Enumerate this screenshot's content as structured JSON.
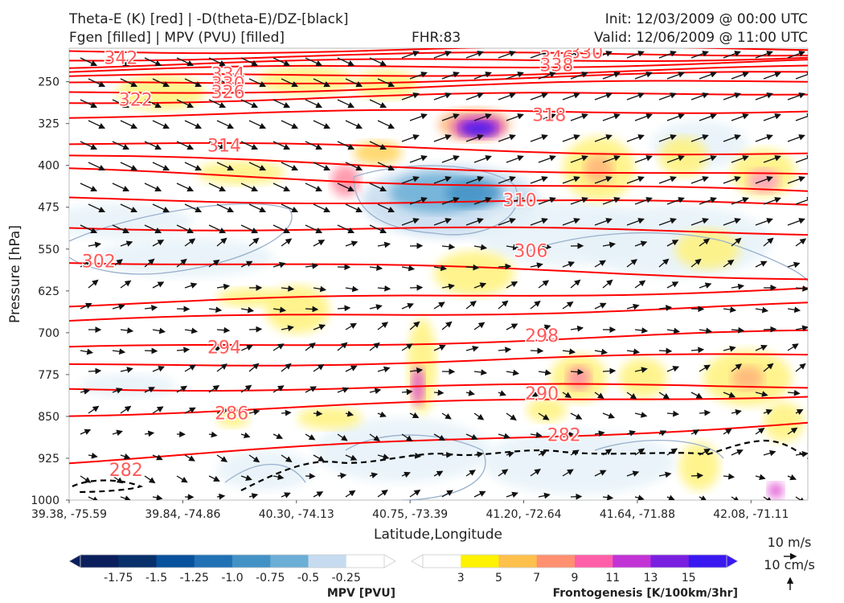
{
  "header": {
    "left_line1": "Theta-E (K) [red] | -D(theta-E)/DZ-[black]",
    "left_line2": "Fgen [filled] | MPV (PVU) [filled]",
    "center": "FHR:83",
    "init": "Init: 12/03/2009 @ 00:00 UTC",
    "valid": "Valid: 12/06/2009 @ 11:00 UTC"
  },
  "chart_data": {
    "type": "contour",
    "title": "Theta-E (K) [red] | -D(theta-E)/DZ-[black] / Fgen [filled] | MPV (PVU) [filled]",
    "xlabel": "Latitude,Longitude",
    "ylabel": "Pressure [hPa]",
    "x_tick_labels": [
      "39.38, -75.59",
      "39.84, -74.86",
      "40.30, -74.13",
      "40.75, -73.39",
      "41.20, -72.64",
      "41.64, -71.88",
      "42.08, -71.11"
    ],
    "y_ticks": [
      250,
      325,
      400,
      475,
      550,
      625,
      700,
      775,
      850,
      925,
      1000
    ],
    "ylim": [
      1000,
      190
    ],
    "theta_e": {
      "color": "#ff0000",
      "contour_labels": [
        {
          "value": "342",
          "x_frac": 0.07,
          "p": 208
        },
        {
          "value": "330",
          "x_frac": 0.7,
          "p": 198
        },
        {
          "value": "346",
          "x_frac": 0.66,
          "p": 207
        },
        {
          "value": "338",
          "x_frac": 0.66,
          "p": 221
        },
        {
          "value": "334",
          "x_frac": 0.215,
          "p": 237
        },
        {
          "value": "330",
          "x_frac": 0.215,
          "p": 254
        },
        {
          "value": "326",
          "x_frac": 0.215,
          "p": 269
        },
        {
          "value": "322",
          "x_frac": 0.09,
          "p": 283
        },
        {
          "value": "318",
          "x_frac": 0.65,
          "p": 310
        },
        {
          "value": "314",
          "x_frac": 0.21,
          "p": 365
        },
        {
          "value": "310",
          "x_frac": 0.61,
          "p": 463
        },
        {
          "value": "306",
          "x_frac": 0.625,
          "p": 554
        },
        {
          "value": "302",
          "x_frac": 0.04,
          "p": 573
        },
        {
          "value": "298",
          "x_frac": 0.64,
          "p": 706
        },
        {
          "value": "294",
          "x_frac": 0.21,
          "p": 727
        },
        {
          "value": "290",
          "x_frac": 0.64,
          "p": 810
        },
        {
          "value": "286",
          "x_frac": 0.22,
          "p": 845
        },
        {
          "value": "282",
          "x_frac": 0.67,
          "p": 884
        },
        {
          "value": "282",
          "x_frac": 0.077,
          "p": 947
        }
      ]
    },
    "mpv_colorbar": {
      "label": "MPV [PVU]",
      "ticks": [
        "-1.75",
        "-1.5",
        "-1.25",
        "-1.0",
        "-0.75",
        "-0.5",
        "-0.25"
      ],
      "colors": [
        "#0a1f5c",
        "#08306b",
        "#08519c",
        "#2171b5",
        "#4292c6",
        "#6baed6",
        "#c6dbef",
        "#ffffff"
      ]
    },
    "fgen_colorbar": {
      "label": "Frontogenesis [K/100km/3hr]",
      "ticks": [
        "3",
        "5",
        "7",
        "9",
        "11",
        "13",
        "15"
      ],
      "colors": [
        "#ffffff",
        "#fff200",
        "#ffc04c",
        "#ff9070",
        "#ff5fa8",
        "#c233d6",
        "#7a1fe0",
        "#3a18f0"
      ]
    },
    "wind_reference": {
      "horizontal": "10 m/s",
      "vertical": "10 cm/s"
    }
  }
}
